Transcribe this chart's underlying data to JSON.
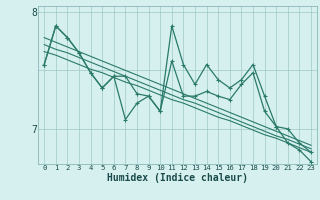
{
  "xlabel": "Humidex (Indice chaleur)",
  "bg_color": "#d6f0f0",
  "grid_color": "#a0c8c8",
  "line_color": "#2a7a6a",
  "x_values": [
    0,
    1,
    2,
    3,
    4,
    5,
    6,
    7,
    8,
    9,
    10,
    11,
    12,
    13,
    14,
    15,
    16,
    17,
    18,
    19,
    20,
    21,
    22,
    23
  ],
  "series1": [
    7.55,
    7.88,
    7.78,
    7.65,
    7.48,
    7.35,
    7.45,
    7.45,
    7.3,
    7.28,
    7.15,
    7.88,
    7.55,
    7.38,
    7.55,
    7.42,
    7.35,
    7.42,
    7.55,
    7.28,
    7.02,
    7.0,
    6.88,
    6.8
  ],
  "series2": [
    7.55,
    7.88,
    7.78,
    7.65,
    7.48,
    7.35,
    7.45,
    7.08,
    7.22,
    7.28,
    7.15,
    7.58,
    7.28,
    7.28,
    7.32,
    7.28,
    7.25,
    7.38,
    7.48,
    7.15,
    7.02,
    6.88,
    6.82,
    6.72
  ],
  "trend1": [
    7.78,
    7.74,
    7.7,
    7.66,
    7.62,
    7.58,
    7.54,
    7.5,
    7.46,
    7.42,
    7.38,
    7.34,
    7.3,
    7.26,
    7.22,
    7.18,
    7.14,
    7.1,
    7.06,
    7.02,
    6.98,
    6.94,
    6.9,
    6.86
  ],
  "trend2": [
    7.72,
    7.68,
    7.65,
    7.61,
    7.57,
    7.53,
    7.49,
    7.45,
    7.41,
    7.37,
    7.33,
    7.29,
    7.25,
    7.22,
    7.18,
    7.14,
    7.1,
    7.06,
    7.02,
    6.98,
    6.94,
    6.91,
    6.87,
    6.83
  ],
  "trend3": [
    7.66,
    7.63,
    7.59,
    7.55,
    7.51,
    7.48,
    7.44,
    7.4,
    7.37,
    7.33,
    7.29,
    7.25,
    7.22,
    7.18,
    7.14,
    7.1,
    7.07,
    7.03,
    6.99,
    6.95,
    6.92,
    6.88,
    6.84,
    6.8
  ],
  "ylim": [
    6.7,
    8.05
  ],
  "yticks_major": [
    7.0,
    8.0
  ],
  "ytick_minor": 7.5
}
